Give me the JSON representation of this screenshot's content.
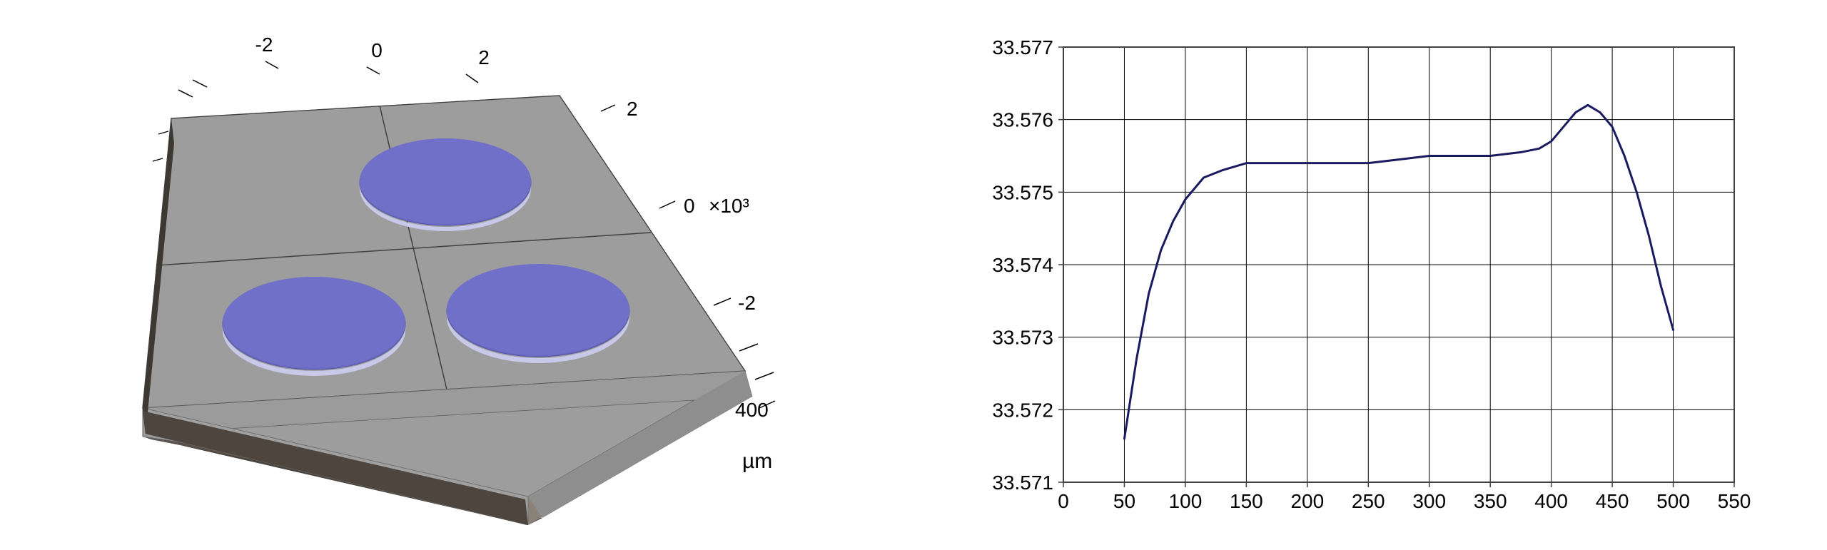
{
  "left_panel": {
    "type": "3d-rendering",
    "x_ticks": [
      "-2",
      "0",
      "2"
    ],
    "y_ticks": [
      "2",
      "0",
      "-2"
    ],
    "z_value": "400",
    "y_scale": "×10³",
    "unit": "µm",
    "substrate_color": "#9d9d9d",
    "substrate_side_color": "#5a5048",
    "disk_color": "#7070c8",
    "disk_edge_color": "#b8b8e0",
    "grid_line_color": "#404040"
  },
  "right_panel": {
    "type": "line",
    "xlim": [
      0,
      550
    ],
    "ylim": [
      33.571,
      33.577
    ],
    "x_ticks": [
      0,
      50,
      100,
      150,
      200,
      250,
      300,
      350,
      400,
      450,
      500,
      550
    ],
    "y_ticks": [
      33.571,
      33.572,
      33.573,
      33.574,
      33.575,
      33.576,
      33.577
    ],
    "x_tick_labels": [
      "0",
      "50",
      "100",
      "150",
      "200",
      "250",
      "300",
      "350",
      "400",
      "450",
      "500",
      "550"
    ],
    "y_tick_labels": [
      "33.571",
      "33.572",
      "33.573",
      "33.574",
      "33.575",
      "33.576",
      "33.577"
    ],
    "line_color": "#1a1a60",
    "line_width": 3,
    "border_color": "#404040",
    "grid_color": "#000000",
    "background_color": "#ffffff",
    "tick_fontsize": 28,
    "data": [
      {
        "x": 50,
        "y": 33.5716
      },
      {
        "x": 60,
        "y": 33.5727
      },
      {
        "x": 70,
        "y": 33.5736
      },
      {
        "x": 80,
        "y": 33.5742
      },
      {
        "x": 90,
        "y": 33.5746
      },
      {
        "x": 100,
        "y": 33.5749
      },
      {
        "x": 115,
        "y": 33.5752
      },
      {
        "x": 130,
        "y": 33.5753
      },
      {
        "x": 150,
        "y": 33.5754
      },
      {
        "x": 175,
        "y": 33.5754
      },
      {
        "x": 200,
        "y": 33.5754
      },
      {
        "x": 225,
        "y": 33.5754
      },
      {
        "x": 250,
        "y": 33.5754
      },
      {
        "x": 275,
        "y": 33.57545
      },
      {
        "x": 300,
        "y": 33.5755
      },
      {
        "x": 325,
        "y": 33.5755
      },
      {
        "x": 350,
        "y": 33.5755
      },
      {
        "x": 375,
        "y": 33.57555
      },
      {
        "x": 390,
        "y": 33.5756
      },
      {
        "x": 400,
        "y": 33.5757
      },
      {
        "x": 410,
        "y": 33.5759
      },
      {
        "x": 420,
        "y": 33.5761
      },
      {
        "x": 430,
        "y": 33.5762
      },
      {
        "x": 440,
        "y": 33.5761
      },
      {
        "x": 450,
        "y": 33.5759
      },
      {
        "x": 460,
        "y": 33.5755
      },
      {
        "x": 470,
        "y": 33.575
      },
      {
        "x": 480,
        "y": 33.5744
      },
      {
        "x": 490,
        "y": 33.5737
      },
      {
        "x": 500,
        "y": 33.5731
      }
    ]
  }
}
